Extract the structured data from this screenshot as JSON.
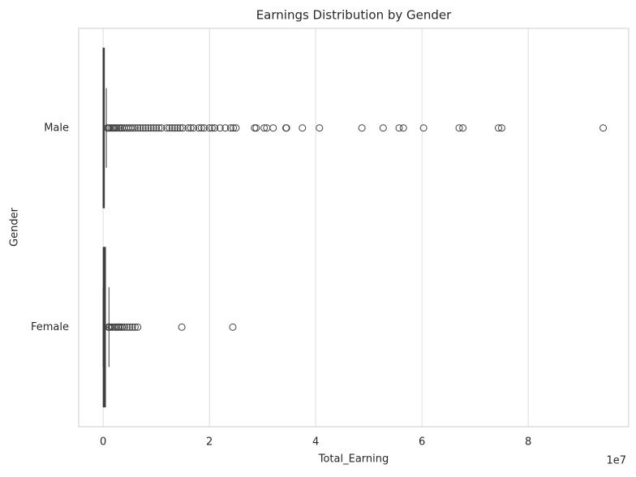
{
  "chart_data": {
    "type": "boxplot",
    "orientation": "horizontal",
    "title": "Earnings Distribution by Gender",
    "x_label": "Total_Earning",
    "y_label": "Gender",
    "x_offset_label": "1e7",
    "categories": [
      "Male",
      "Female"
    ],
    "boxes": [
      {
        "color": "#4c72b0",
        "whislo": 0,
        "q1": 0.002,
        "med": 0.01,
        "q3": 0.02,
        "whishi": 0.06,
        "outliers": [
          0.08,
          0.1,
          0.12,
          0.15,
          0.18,
          0.2,
          0.23,
          0.26,
          0.3,
          0.33,
          0.36,
          0.4,
          0.44,
          0.48,
          0.52,
          0.56,
          0.6,
          0.65,
          0.7,
          0.75,
          0.8,
          0.85,
          0.9,
          0.95,
          1.0,
          1.05,
          1.1,
          1.2,
          1.25,
          1.3,
          1.35,
          1.4,
          1.45,
          1.5,
          1.6,
          1.65,
          1.7,
          1.8,
          1.85,
          1.9,
          2.0,
          2.05,
          2.1,
          2.2,
          2.3,
          2.4,
          2.45,
          2.5,
          2.85,
          2.88,
          3.03,
          3.08,
          3.2,
          3.44,
          3.45,
          3.75,
          4.07,
          4.87,
          5.27,
          5.57,
          5.65,
          6.03,
          6.7,
          6.77,
          7.44,
          7.5,
          9.41
        ]
      },
      {
        "color": "#55a868",
        "whislo": 0,
        "q1": 0.005,
        "med": 0.02,
        "q3": 0.04,
        "whishi": 0.11,
        "outliers": [
          0.1,
          0.12,
          0.15,
          0.18,
          0.22,
          0.25,
          0.28,
          0.3,
          0.33,
          0.36,
          0.4,
          0.45,
          0.5,
          0.55,
          0.6,
          0.65,
          1.48,
          2.44
        ]
      }
    ],
    "xlim": [
      -0.46,
      9.89
    ],
    "xticks": [
      0,
      2,
      4,
      6,
      8
    ],
    "grid": true
  }
}
